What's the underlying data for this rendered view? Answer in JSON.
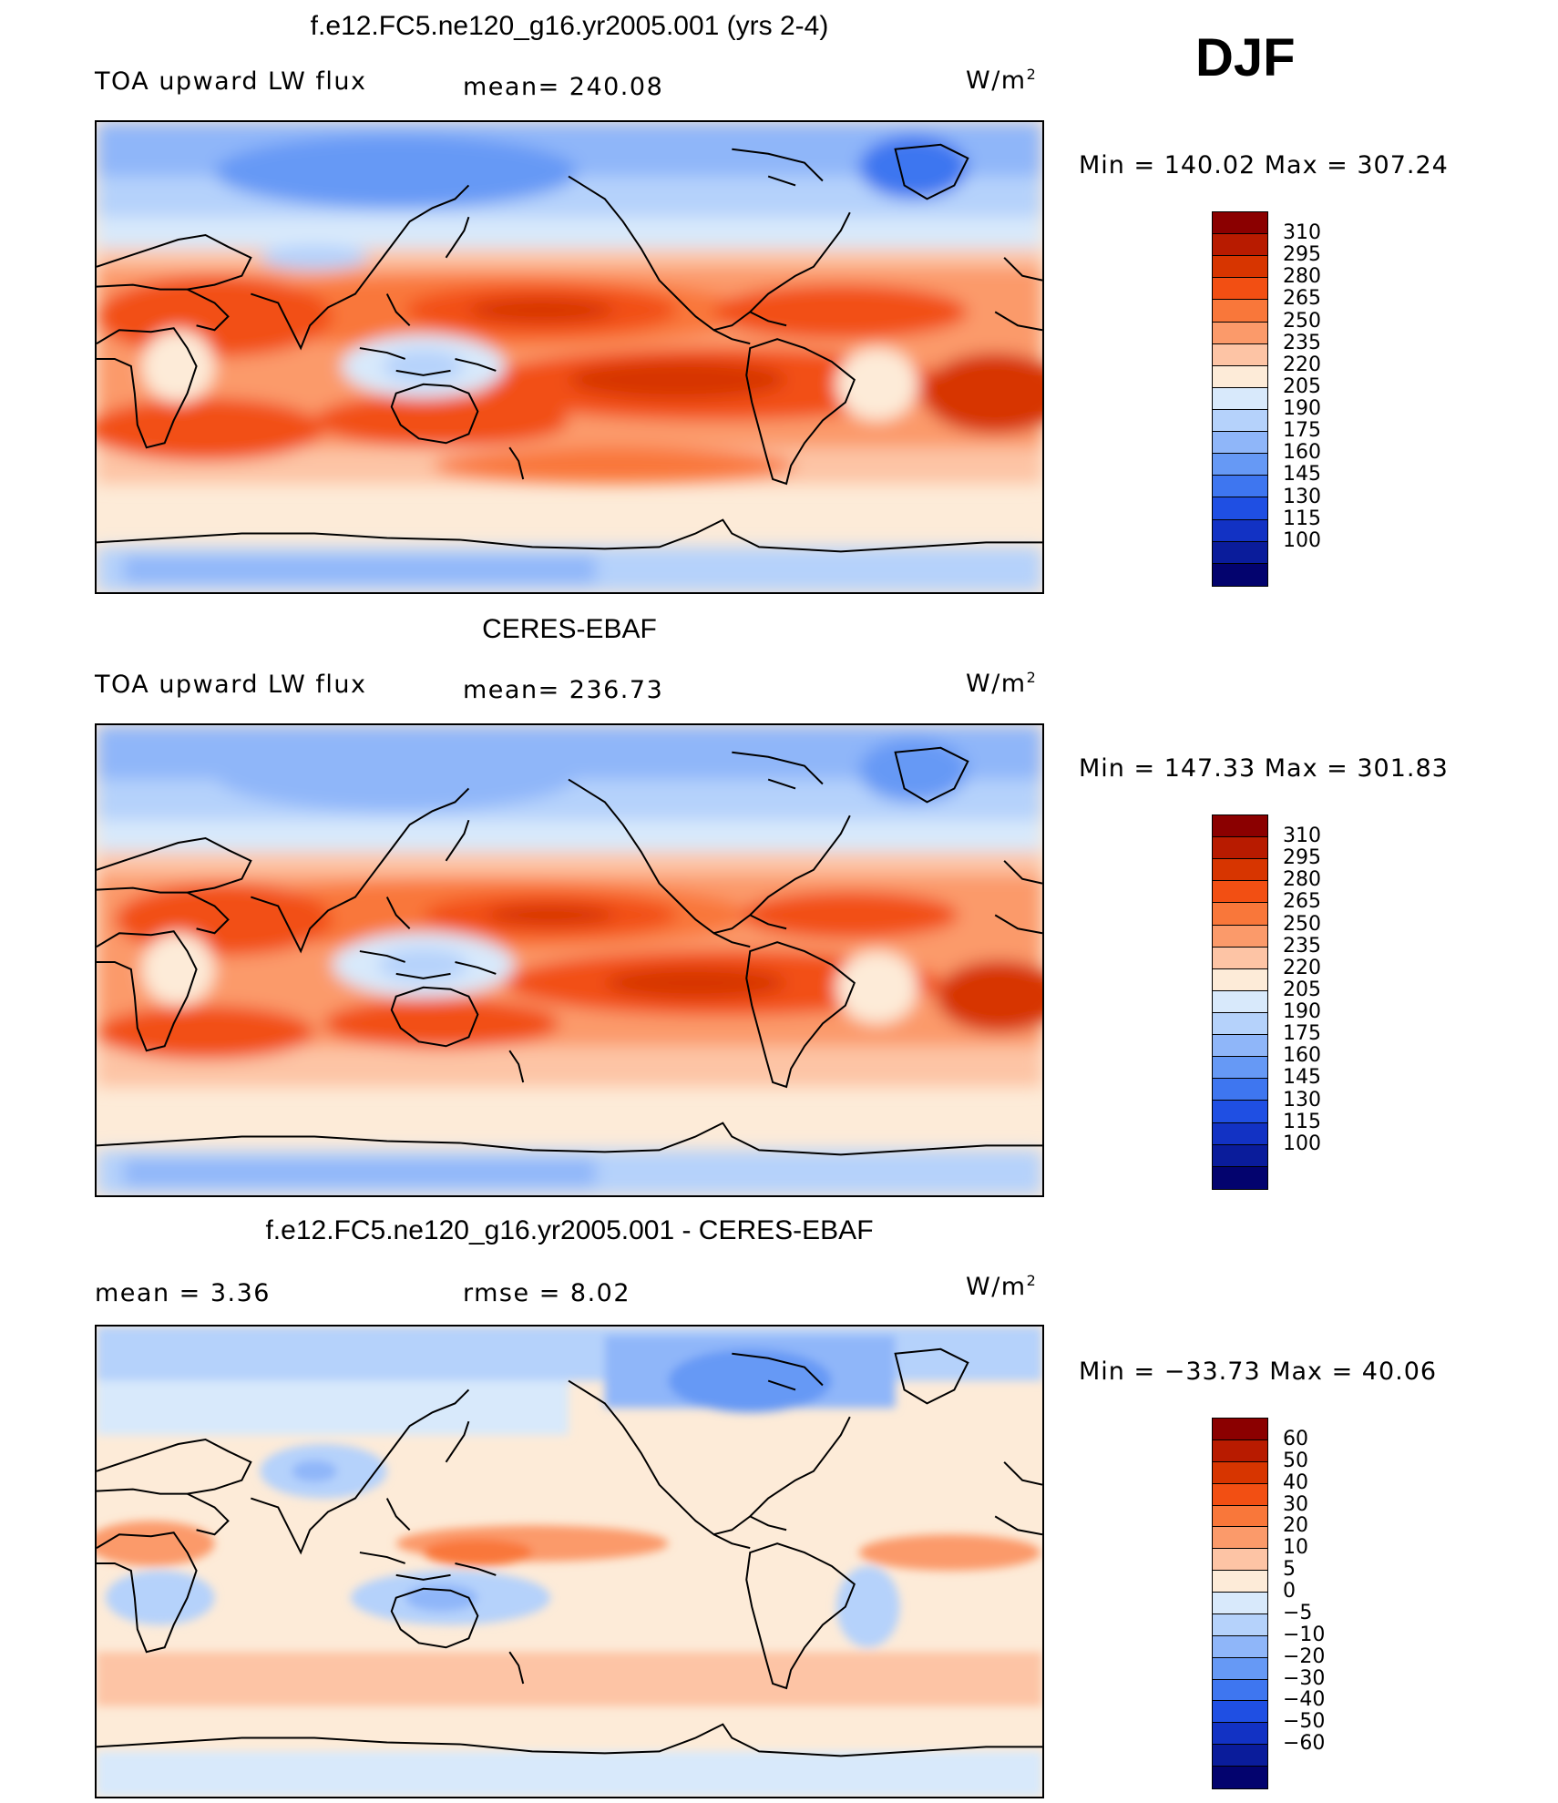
{
  "season": "DJF",
  "panels": [
    {
      "title": "f.e12.FC5.ne120_g16.yr2005.001 (yrs 2-4)",
      "left_label": "TOA upward LW flux",
      "center_label": "mean= 240.08",
      "units": "W/m",
      "units_exp": "2",
      "minmax": "Min = 140.02 Max = 307.24"
    },
    {
      "title": "CERES-EBAF",
      "left_label": "TOA upward LW flux",
      "center_label": "mean= 236.73",
      "units": "W/m",
      "units_exp": "2",
      "minmax": "Min = 147.33 Max = 301.83"
    },
    {
      "title": "f.e12.FC5.ne120_g16.yr2005.001 - CERES-EBAF",
      "left_label": "mean =    3.36",
      "center_label": "rmse =    8.02",
      "units": "W/m",
      "units_exp": "2",
      "minmax": "Min = −33.73 Max =   40.06"
    }
  ],
  "colorbars": {
    "flux": {
      "colors": [
        "#8b0000",
        "#b81b00",
        "#d73500",
        "#f24f13",
        "#f9773a",
        "#fb9a6a",
        "#fdc4a5",
        "#fdebd8",
        "#d8e9fb",
        "#b5d2fb",
        "#8fb6f9",
        "#6699f5",
        "#3e76f0",
        "#1f4fe3",
        "#1232c4",
        "#0a1c9b",
        "#03036e"
      ],
      "labels": [
        "310",
        "295",
        "280",
        "265",
        "250",
        "235",
        "220",
        "205",
        "190",
        "175",
        "160",
        "145",
        "130",
        "115",
        "100"
      ]
    },
    "diff": {
      "colors": [
        "#8b0000",
        "#b81b00",
        "#d73500",
        "#f24f13",
        "#f9773a",
        "#fb9a6a",
        "#fdc4a5",
        "#fdebd8",
        "#d8e9fb",
        "#b5d2fb",
        "#8fb6f9",
        "#6699f5",
        "#3e76f0",
        "#1f4fe3",
        "#1232c4",
        "#0a1c9b",
        "#03036e"
      ],
      "labels": [
        "60",
        "50",
        "40",
        "30",
        "20",
        "10",
        "5",
        "0",
        "−5",
        "−10",
        "−20",
        "−30",
        "−40",
        "−50",
        "−60"
      ]
    }
  }
}
